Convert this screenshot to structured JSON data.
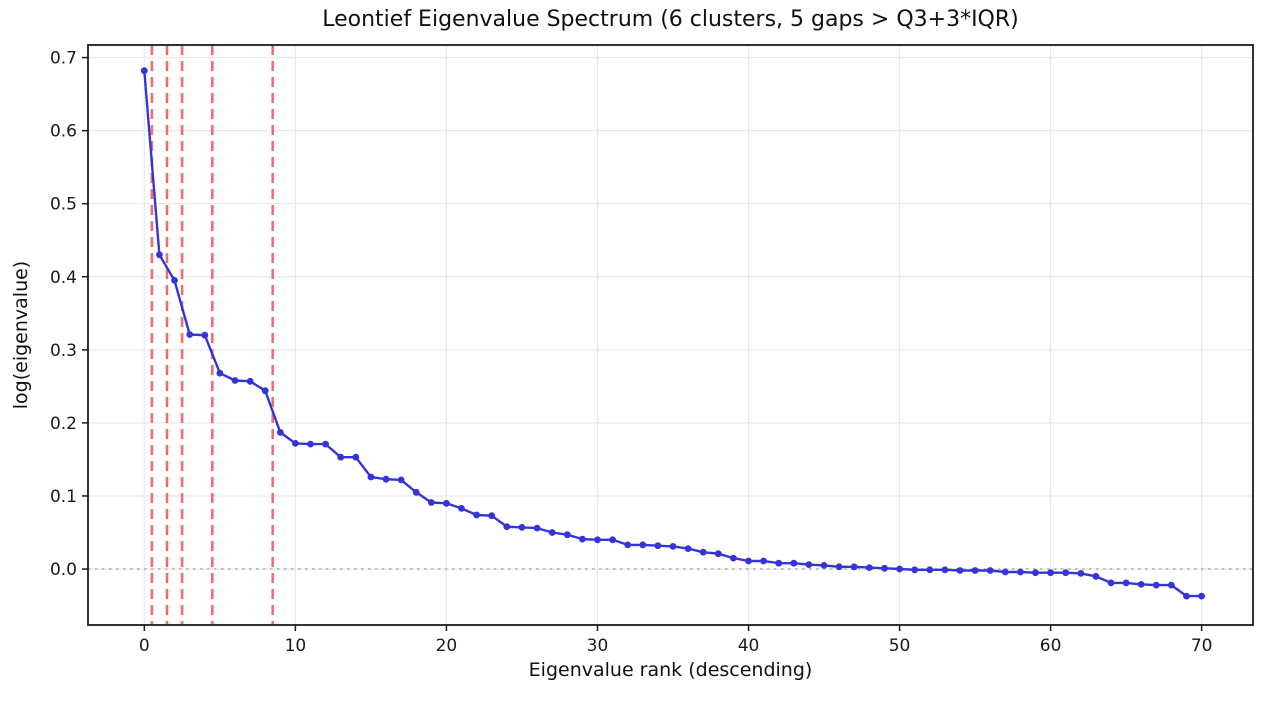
{
  "page": {
    "background": "#ffffff"
  },
  "chart_data": {
    "type": "line",
    "title": "Leontief Eigenvalue Spectrum (6 clusters, 5 gaps > Q3+3*IQR)",
    "xlabel": "Eigenvalue rank (descending)",
    "ylabel": "log(eigenvalue)",
    "x": [
      0,
      1,
      2,
      3,
      4,
      5,
      6,
      7,
      8,
      9,
      10,
      11,
      12,
      13,
      14,
      15,
      16,
      17,
      18,
      19,
      20,
      21,
      22,
      23,
      24,
      25,
      26,
      27,
      28,
      29,
      30,
      31,
      32,
      33,
      34,
      35,
      36,
      37,
      38,
      39,
      40,
      41,
      42,
      43,
      44,
      45,
      46,
      47,
      48,
      49,
      50,
      51,
      52,
      53,
      54,
      55,
      56,
      57,
      58,
      59,
      60,
      61,
      62,
      63,
      64,
      65,
      66,
      67,
      68,
      69,
      70
    ],
    "series": [
      {
        "name": "log(eigenvalue) spectrum",
        "values": [
          0.682,
          0.43,
          0.395,
          0.321,
          0.32,
          0.268,
          0.258,
          0.257,
          0.244,
          0.187,
          0.172,
          0.171,
          0.171,
          0.153,
          0.153,
          0.126,
          0.123,
          0.122,
          0.105,
          0.091,
          0.09,
          0.083,
          0.074,
          0.073,
          0.058,
          0.057,
          0.056,
          0.05,
          0.047,
          0.041,
          0.04,
          0.04,
          0.033,
          0.033,
          0.032,
          0.031,
          0.028,
          0.023,
          0.021,
          0.015,
          0.011,
          0.011,
          0.008,
          0.008,
          0.006,
          0.005,
          0.003,
          0.003,
          0.002,
          0.001,
          0.0,
          -0.001,
          -0.001,
          -0.001,
          -0.002,
          -0.002,
          -0.002,
          -0.004,
          -0.004,
          -0.005,
          -0.005,
          -0.005,
          -0.006,
          -0.01,
          -0.019,
          -0.019,
          -0.021,
          -0.022,
          -0.022,
          -0.037,
          -0.037
        ]
      }
    ],
    "gap_lines_x": [
      0.5,
      1.5,
      2.5,
      4.5,
      8.5
    ],
    "zero_line_y": 0.0,
    "x_ticks": [
      0,
      10,
      20,
      30,
      40,
      50,
      60,
      70
    ],
    "y_ticks": [
      0.0,
      0.1,
      0.2,
      0.3,
      0.4,
      0.5,
      0.6,
      0.7
    ],
    "y_tick_labels": [
      "0.0",
      "0.1",
      "0.2",
      "0.3",
      "0.4",
      "0.5",
      "0.6",
      "0.7"
    ],
    "xlim": [
      -3.73,
      73.4
    ],
    "ylim": [
      -0.0766,
      0.7172
    ],
    "grid": true,
    "legend_position": "none",
    "colors": {
      "line": "#3434d9",
      "marker": "#3434d9",
      "gap_line": "#f26e6e",
      "zero_line": "#b8b8b8",
      "grid": "#e8e8e8",
      "spine": "#1c1c1c",
      "text": "#1a1a1a"
    }
  }
}
